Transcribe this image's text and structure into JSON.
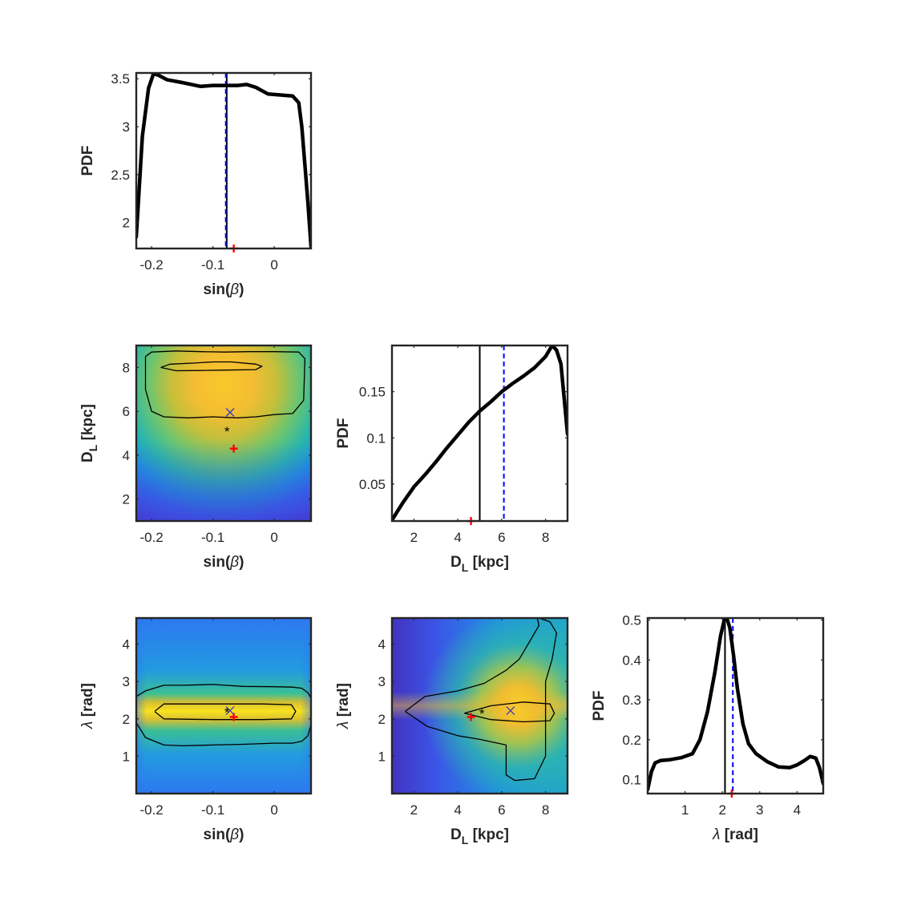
{
  "figure_type": "corner plot",
  "colormap": [
    "#3e26a8",
    "#4745e8",
    "#2c74f8",
    "#1a9ddb",
    "#1eb8b0",
    "#5bc578",
    "#b8bd39",
    "#f6bd27",
    "#f9e81d"
  ],
  "colors": {
    "best_fit_line": "#000000",
    "dashed_line": "#0000ff",
    "true_marker": "#ff0000",
    "x_marker": "#3b3bbf",
    "star_marker": "#000000"
  },
  "chart_data": [
    {
      "panel": "sin-beta-pdf",
      "type": "line",
      "xlabel": "sin(β)",
      "ylabel": "PDF",
      "xlim": [
        -0.225,
        0.06
      ],
      "ylim": [
        1.73,
        3.56
      ],
      "xticks": [
        -0.2,
        -0.1,
        0
      ],
      "xtick_labels": [
        "-0.2",
        "-0.1",
        "0"
      ],
      "yticks": [
        2,
        2.5,
        3,
        3.5
      ],
      "ytick_labels": [
        "2",
        "2.5",
        "3",
        "3.5"
      ],
      "series": [
        {
          "x": [
            -0.225,
            -0.215,
            -0.205,
            -0.197,
            -0.19,
            -0.175,
            -0.15,
            -0.12,
            -0.1,
            -0.085,
            -0.075,
            -0.06,
            -0.045,
            -0.03,
            -0.01,
            0.01,
            0.03,
            0.04,
            0.045,
            0.05,
            0.055,
            0.06
          ],
          "y": [
            1.85,
            2.9,
            3.4,
            3.55,
            3.54,
            3.49,
            3.46,
            3.42,
            3.43,
            3.43,
            3.43,
            3.43,
            3.44,
            3.41,
            3.34,
            3.33,
            3.32,
            3.25,
            3.0,
            2.6,
            2.2,
            1.75
          ]
        }
      ],
      "vlines": [
        {
          "x": -0.0775,
          "style": "solid"
        },
        {
          "x": -0.079,
          "style": "dashed"
        }
      ],
      "markers": [
        {
          "symbol": "+",
          "x": -0.066,
          "y": 1.73
        }
      ]
    },
    {
      "panel": "dl-vs-sin-beta",
      "type": "heatmap",
      "xlabel": "sin(β)",
      "ylabel": "D_L [kpc]",
      "xlim": [
        -0.225,
        0.06
      ],
      "ylim": [
        1,
        9
      ],
      "xticks": [
        -0.2,
        -0.1,
        0
      ],
      "xtick_labels": [
        "-0.2",
        "-0.1",
        "0"
      ],
      "yticks": [
        2,
        4,
        6,
        8
      ],
      "ytick_labels": [
        "2",
        "4",
        "6",
        "8"
      ],
      "contours": [
        {
          "x": [
            -0.21,
            -0.2,
            -0.16,
            -0.12,
            -0.08,
            -0.04,
            0.0,
            0.04,
            0.05,
            0.048,
            0.03,
            0.0,
            -0.03,
            -0.06,
            -0.1,
            -0.14,
            -0.18,
            -0.2,
            -0.21,
            -0.21
          ],
          "y": [
            8.5,
            8.7,
            8.75,
            8.72,
            8.7,
            8.72,
            8.72,
            8.7,
            8.4,
            6.5,
            5.9,
            5.85,
            5.75,
            5.7,
            5.75,
            5.7,
            5.75,
            6.0,
            7.0,
            8.5
          ]
        },
        {
          "x": [
            -0.185,
            -0.17,
            -0.13,
            -0.1,
            -0.07,
            -0.03,
            -0.02,
            -0.03,
            -0.08,
            -0.12,
            -0.16,
            -0.185
          ],
          "y": [
            8.0,
            8.15,
            8.2,
            8.25,
            8.25,
            8.15,
            8.05,
            7.9,
            7.88,
            7.86,
            7.85,
            8.0
          ]
        }
      ],
      "markers": [
        {
          "symbol": "+",
          "x": -0.066,
          "y": 4.3
        },
        {
          "symbol": "x",
          "x": -0.072,
          "y": 5.95
        },
        {
          "symbol": "*",
          "x": -0.077,
          "y": 5.1
        }
      ]
    },
    {
      "panel": "dl-pdf",
      "type": "line",
      "xlabel": "D_L [kpc]",
      "ylabel": "PDF",
      "xlim": [
        1,
        9
      ],
      "ylim": [
        0.01,
        0.2
      ],
      "xticks": [
        2,
        4,
        6,
        8
      ],
      "xtick_labels": [
        "2",
        "4",
        "6",
        "8"
      ],
      "yticks": [
        0.05,
        0.1,
        0.15
      ],
      "ytick_labels": [
        "0.05",
        "0.1",
        "0.15"
      ],
      "series": [
        {
          "x": [
            1.0,
            1.5,
            2.0,
            2.5,
            3.0,
            3.5,
            4.0,
            4.5,
            5.0,
            5.5,
            6.0,
            6.5,
            7.0,
            7.5,
            8.0,
            8.3,
            8.5,
            8.7,
            9.0
          ],
          "y": [
            0.011,
            0.03,
            0.047,
            0.06,
            0.074,
            0.089,
            0.103,
            0.117,
            0.129,
            0.139,
            0.15,
            0.159,
            0.167,
            0.176,
            0.188,
            0.2,
            0.195,
            0.18,
            0.104
          ]
        }
      ],
      "vlines": [
        {
          "x": 5.0,
          "style": "solid"
        },
        {
          "x": 6.1,
          "style": "dashed"
        }
      ],
      "markers": [
        {
          "symbol": "+",
          "x": 4.6,
          "y": 0.01
        }
      ]
    },
    {
      "panel": "lambda-vs-sin-beta",
      "type": "heatmap",
      "xlabel": "sin(β)",
      "ylabel": "λ [rad]",
      "xlim": [
        -0.225,
        0.06
      ],
      "ylim": [
        0,
        4.7
      ],
      "xticks": [
        -0.2,
        -0.1,
        0
      ],
      "xtick_labels": [
        "-0.2",
        "-0.1",
        "0"
      ],
      "yticks": [
        1,
        2,
        3,
        4
      ],
      "ytick_labels": [
        "1",
        "2",
        "3",
        "4"
      ],
      "contours": [
        {
          "x": [
            -0.225,
            -0.21,
            -0.18,
            -0.15,
            -0.1,
            -0.05,
            0.0,
            0.03,
            0.045,
            0.055,
            0.06
          ],
          "y": [
            2.6,
            2.75,
            2.9,
            2.9,
            2.92,
            2.87,
            2.86,
            2.85,
            2.82,
            2.7,
            2.55
          ]
        },
        {
          "x": [
            -0.225,
            -0.21,
            -0.18,
            -0.15,
            -0.1,
            -0.05,
            0.0,
            0.03,
            0.045,
            0.055,
            0.06
          ],
          "y": [
            1.9,
            1.5,
            1.3,
            1.28,
            1.3,
            1.32,
            1.35,
            1.35,
            1.4,
            1.55,
            1.85
          ]
        },
        {
          "x": [
            -0.195,
            -0.18,
            -0.1,
            -0.02,
            0.028,
            0.035,
            0.028,
            -0.02,
            -0.1,
            -0.18,
            -0.195
          ],
          "y": [
            2.2,
            2.4,
            2.4,
            2.4,
            2.38,
            2.2,
            2.0,
            1.98,
            1.98,
            2.0,
            2.2
          ]
        }
      ],
      "markers": [
        {
          "symbol": "+",
          "x": -0.066,
          "y": 2.05
        },
        {
          "symbol": "x",
          "x": -0.072,
          "y": 2.22
        },
        {
          "symbol": "*",
          "x": -0.077,
          "y": 2.18
        }
      ]
    },
    {
      "panel": "lambda-vs-dl",
      "type": "heatmap",
      "xlabel": "D_L [kpc]",
      "ylabel": "λ [rad]",
      "xlim": [
        1,
        9
      ],
      "ylim": [
        0,
        4.7
      ],
      "xticks": [
        2,
        4,
        6,
        8
      ],
      "xtick_labels": [
        "2",
        "4",
        "6",
        "8"
      ],
      "yticks": [
        1,
        2,
        3,
        4
      ],
      "ytick_labels": [
        "1",
        "2",
        "3",
        "4"
      ],
      "contours": [
        {
          "x": [
            1.6,
            2.5,
            4.0,
            5.2,
            6.2,
            6.8,
            7.3,
            7.7,
            7.6,
            7.7,
            8.2,
            8.5,
            8.3,
            8.0,
            8.0,
            7.5,
            6.6,
            6.2,
            6.2,
            5.0,
            4.0,
            2.6,
            1.6
          ],
          "y": [
            2.2,
            2.6,
            2.75,
            2.95,
            3.3,
            3.6,
            4.1,
            4.5,
            4.75,
            4.7,
            4.6,
            4.3,
            3.6,
            3.0,
            1.0,
            0.4,
            0.35,
            0.5,
            1.3,
            1.45,
            1.55,
            1.8,
            2.2
          ]
        },
        {
          "x": [
            4.3,
            5.5,
            7.0,
            8.2,
            8.4,
            8.2,
            7.0,
            5.5,
            4.3
          ],
          "y": [
            2.15,
            2.35,
            2.45,
            2.4,
            2.15,
            1.95,
            1.92,
            1.98,
            2.15
          ]
        }
      ],
      "markers": [
        {
          "symbol": "+",
          "x": 4.6,
          "y": 2.05
        },
        {
          "symbol": "x",
          "x": 6.4,
          "y": 2.22
        },
        {
          "symbol": "*",
          "x": 5.1,
          "y": 2.15
        }
      ]
    },
    {
      "panel": "lambda-pdf",
      "type": "line",
      "xlabel": "λ [rad]",
      "ylabel": "PDF",
      "xlim": [
        0,
        4.7
      ],
      "ylim": [
        0.065,
        0.505
      ],
      "xticks": [
        1,
        2,
        3,
        4
      ],
      "xtick_labels": [
        "1",
        "2",
        "3",
        "4"
      ],
      "yticks": [
        0.1,
        0.2,
        0.3,
        0.4,
        0.5
      ],
      "ytick_labels": [
        "0.1",
        "0.2",
        "0.3",
        "0.4",
        "0.5"
      ],
      "series": [
        {
          "x": [
            0.0,
            0.1,
            0.2,
            0.35,
            0.6,
            0.9,
            1.2,
            1.4,
            1.6,
            1.8,
            1.95,
            2.05,
            2.12,
            2.2,
            2.3,
            2.4,
            2.55,
            2.7,
            2.9,
            3.2,
            3.5,
            3.8,
            4.0,
            4.2,
            4.35,
            4.5,
            4.6,
            4.65,
            4.7
          ],
          "y": [
            0.075,
            0.12,
            0.142,
            0.148,
            0.15,
            0.155,
            0.165,
            0.2,
            0.27,
            0.37,
            0.46,
            0.5,
            0.505,
            0.48,
            0.41,
            0.33,
            0.24,
            0.19,
            0.165,
            0.145,
            0.132,
            0.13,
            0.137,
            0.148,
            0.158,
            0.154,
            0.13,
            0.11,
            0.09
          ]
        }
      ],
      "vlines": [
        {
          "x": 2.07,
          "style": "solid"
        },
        {
          "x": 2.28,
          "style": "dashed"
        }
      ],
      "markers": [
        {
          "symbol": "+",
          "x": 2.25,
          "y": 0.065
        }
      ]
    }
  ]
}
